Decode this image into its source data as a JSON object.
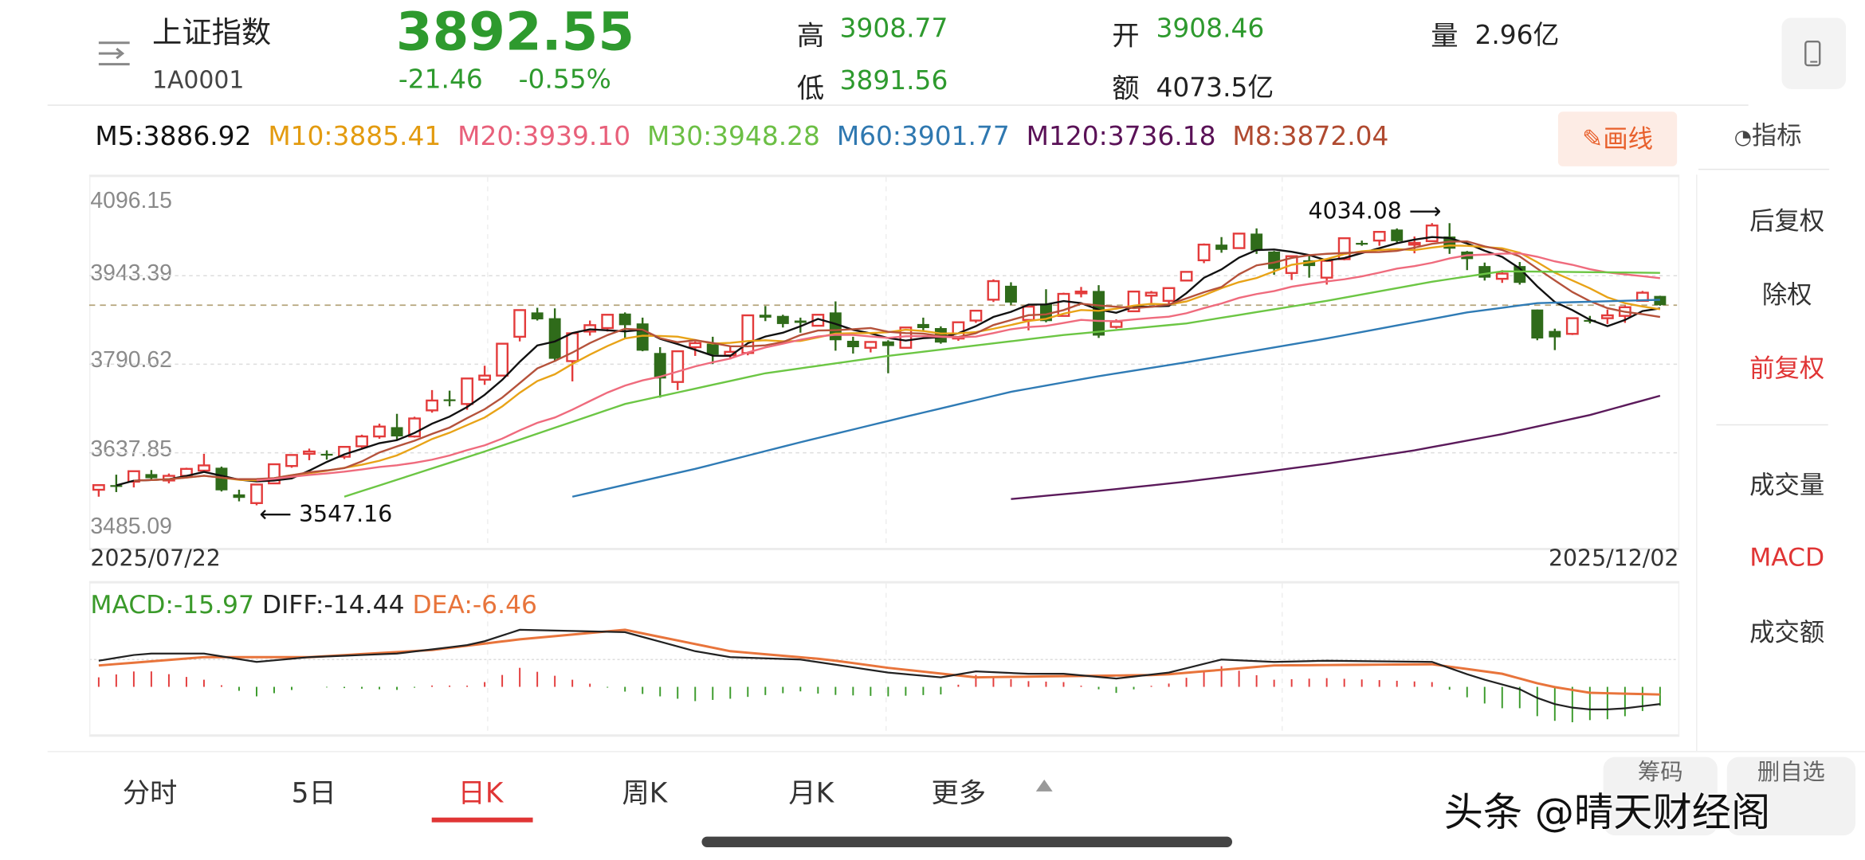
{
  "header": {
    "name": "上证指数",
    "code": "1A0001",
    "price": "3892.55",
    "change": "-21.46",
    "change_pct": "-0.55%",
    "high_label": "高",
    "high": "3908.77",
    "low_label": "低",
    "low": "3891.56",
    "open_label": "开",
    "open": "3908.46",
    "amount_label": "额",
    "amount": "4073.5亿",
    "volume_label": "量",
    "volume": "2.96亿",
    "price_color": "#2e9a2e"
  },
  "ma_legend": [
    {
      "text": "M5:3886.92",
      "color": "#111111"
    },
    {
      "text": "M10:3885.41",
      "color": "#e39b10"
    },
    {
      "text": "M20:3939.10",
      "color": "#e8607a"
    },
    {
      "text": "M30:3948.28",
      "color": "#6cbf45"
    },
    {
      "text": "M60:3901.77",
      "color": "#2f78b0"
    },
    {
      "text": "M120:3736.18",
      "color": "#5a1257"
    },
    {
      "text": "M8:3872.04",
      "color": "#b04a30"
    }
  ],
  "draw_button": "画线",
  "indicator_label": "指标",
  "right_panel": {
    "items": [
      {
        "label": "后复权",
        "active": false
      },
      {
        "label": "除权",
        "active": false
      },
      {
        "label": "前复权",
        "active": true
      },
      {
        "label": "成交量",
        "active": false
      },
      {
        "label": "MACD",
        "active": true
      },
      {
        "label": "成交额",
        "active": false
      }
    ]
  },
  "tabs": [
    {
      "label": "分时",
      "active": false
    },
    {
      "label": "5日",
      "active": false
    },
    {
      "label": "日K",
      "active": true
    },
    {
      "label": "周K",
      "active": false
    },
    {
      "label": "月K",
      "active": false
    },
    {
      "label": "更多",
      "active": false
    }
  ],
  "bottom_buttons": [
    "筹码",
    "删自选"
  ],
  "watermark": "头条 @晴天财经阁",
  "chart_data": {
    "type": "candlestick",
    "y_ticks": [
      "4096.15",
      "3943.39",
      "3790.62",
      "3637.85",
      "3485.09"
    ],
    "ylim": [
      3485.09,
      4096.15
    ],
    "x_start_label": "2025/07/22",
    "x_end_label": "2025/12/02",
    "last_price": 3892.55,
    "up_color": "#e33b3b",
    "down_color": "#2f6b1a",
    "annotations": {
      "low": {
        "label": "3547.16",
        "index": 9,
        "value": 3547.16
      },
      "high": {
        "label": "4034.08",
        "index": 76,
        "value": 4034.08
      }
    },
    "candles_ohlc": [
      [
        3574,
        3583,
        3562,
        3582
      ],
      [
        3582,
        3600,
        3570,
        3581
      ],
      [
        3588,
        3606,
        3578,
        3606
      ],
      [
        3601,
        3608,
        3590,
        3594
      ],
      [
        3590,
        3602,
        3585,
        3598
      ],
      [
        3598,
        3612,
        3594,
        3610
      ],
      [
        3607,
        3636,
        3603,
        3616
      ],
      [
        3612,
        3614,
        3571,
        3573
      ],
      [
        3566,
        3574,
        3554,
        3560
      ],
      [
        3551,
        3584,
        3547.16,
        3583
      ],
      [
        3585,
        3618,
        3584,
        3618
      ],
      [
        3615,
        3634,
        3612,
        3634
      ],
      [
        3636,
        3645,
        3625,
        3640
      ],
      [
        3636,
        3642,
        3626,
        3635
      ],
      [
        3631,
        3649,
        3627,
        3648
      ],
      [
        3649,
        3669,
        3646,
        3666
      ],
      [
        3666,
        3688,
        3662,
        3683
      ],
      [
        3682,
        3705,
        3660,
        3666
      ],
      [
        3666,
        3700,
        3664,
        3697
      ],
      [
        3711,
        3746,
        3707,
        3728
      ],
      [
        3730,
        3745,
        3718,
        3727
      ],
      [
        3722,
        3767,
        3712,
        3766
      ],
      [
        3764,
        3788,
        3755,
        3771
      ],
      [
        3771,
        3826,
        3770,
        3826
      ],
      [
        3838,
        3883,
        3830,
        3884
      ],
      [
        3880,
        3888,
        3866,
        3868
      ],
      [
        3870,
        3887,
        3795,
        3800
      ],
      [
        3796,
        3845,
        3761,
        3844
      ],
      [
        3847,
        3866,
        3840,
        3858
      ],
      [
        3853,
        3876,
        3847,
        3876
      ],
      [
        3878,
        3880,
        3834,
        3858
      ],
      [
        3861,
        3871,
        3813,
        3814
      ],
      [
        3810,
        3820,
        3733,
        3766
      ],
      [
        3760,
        3813,
        3746,
        3813
      ],
      [
        3820,
        3830,
        3805,
        3827
      ],
      [
        3826,
        3838,
        3791,
        3807
      ],
      [
        3806,
        3822,
        3799,
        3812
      ],
      [
        3810,
        3875,
        3806,
        3875
      ],
      [
        3876,
        3891,
        3865,
        3871
      ],
      [
        3874,
        3876,
        3854,
        3860
      ],
      [
        3866,
        3871,
        3845,
        3862
      ],
      [
        3857,
        3877,
        3856,
        3876
      ],
      [
        3880,
        3899,
        3814,
        3832
      ],
      [
        3831,
        3838,
        3809,
        3820
      ],
      [
        3819,
        3829,
        3811,
        3829
      ],
      [
        3830,
        3832,
        3775,
        3822
      ],
      [
        3819,
        3854,
        3818,
        3854
      ],
      [
        3860,
        3871,
        3848,
        3853
      ],
      [
        3853,
        3856,
        3826,
        3828
      ],
      [
        3835,
        3863,
        3831,
        3863
      ],
      [
        3866,
        3883,
        3862,
        3883
      ],
      [
        3902,
        3937,
        3898,
        3934
      ],
      [
        3926,
        3932,
        3893,
        3897
      ],
      [
        3867,
        3890,
        3849,
        3890
      ],
      [
        3895,
        3920,
        3863,
        3865
      ],
      [
        3874,
        3914,
        3874,
        3912
      ],
      [
        3913,
        3924,
        3906,
        3916
      ],
      [
        3917,
        3927,
        3836,
        3840
      ],
      [
        3855,
        3868,
        3852,
        3864
      ],
      [
        3882,
        3917,
        3882,
        3916
      ],
      [
        3909,
        3917,
        3895,
        3914
      ],
      [
        3900,
        3922,
        3890,
        3922
      ],
      [
        3935,
        3951,
        3935,
        3950
      ],
      [
        3970,
        3999,
        3965,
        3997
      ],
      [
        3997,
        4010,
        3983,
        3988
      ],
      [
        3991,
        4016,
        3990,
        4016
      ],
      [
        4016,
        4025,
        3981,
        3987
      ],
      [
        3985,
        3986,
        3945,
        3955
      ],
      [
        3948,
        3977,
        3936,
        3977
      ],
      [
        3970,
        3979,
        3940,
        3960
      ],
      [
        3940,
        3969,
        3928,
        3969
      ],
      [
        3972,
        4008,
        3970,
        4008
      ],
      [
        4000,
        4004,
        3995,
        3998
      ],
      [
        4004,
        4019,
        3995,
        4019
      ],
      [
        4023,
        4025,
        4001,
        4003
      ],
      [
        3998,
        4011,
        3982,
        4000
      ],
      [
        4003,
        4034.08,
        4002,
        4030
      ],
      [
        4011,
        4034,
        3981,
        3990
      ],
      [
        3985,
        3986,
        3953,
        3972
      ],
      [
        3960,
        3966,
        3935,
        3940
      ],
      [
        3938,
        3953,
        3931,
        3947
      ],
      [
        3960,
        3967,
        3928,
        3931
      ],
      [
        3885,
        3885,
        3832,
        3835
      ],
      [
        3848,
        3852,
        3815,
        3837
      ],
      [
        3843,
        3870,
        3841,
        3870
      ],
      [
        3867,
        3874,
        3861,
        3864
      ],
      [
        3870,
        3885,
        3860,
        3875
      ],
      [
        3874,
        3892,
        3862,
        3889
      ],
      [
        3900,
        3917,
        3899,
        3914
      ],
      [
        3908.46,
        3908.77,
        3891.56,
        3892.55
      ]
    ],
    "moving_averages": [
      {
        "name": "M5",
        "period": 5,
        "start": 1,
        "color": "#111111"
      },
      {
        "name": "M10",
        "period": 10,
        "start": 3,
        "color": "#e8a317"
      },
      {
        "name": "M8",
        "period": 8,
        "start": 2,
        "color": "#b5523b"
      },
      {
        "name": "M20",
        "period": 20,
        "start": 9,
        "color": "#ef6b7d"
      },
      {
        "name": "M30",
        "color": "#6cc644",
        "points": [
          [
            14,
            3562
          ],
          [
            22,
            3640
          ],
          [
            30,
            3722
          ],
          [
            38,
            3775
          ],
          [
            45,
            3805
          ],
          [
            55,
            3841
          ],
          [
            62,
            3861
          ],
          [
            70,
            3900
          ],
          [
            76,
            3933
          ],
          [
            80,
            3951
          ],
          [
            89,
            3948.28
          ]
        ]
      },
      {
        "name": "M60",
        "color": "#2f7bb5",
        "points": [
          [
            27,
            3562
          ],
          [
            34,
            3610
          ],
          [
            40,
            3656
          ],
          [
            46,
            3700
          ],
          [
            52,
            3743
          ],
          [
            57,
            3770
          ],
          [
            62,
            3794
          ],
          [
            70,
            3835
          ],
          [
            78,
            3880
          ],
          [
            82,
            3896
          ],
          [
            89,
            3901.77
          ]
        ]
      },
      {
        "name": "M120",
        "color": "#5b1a5b",
        "points": [
          [
            52,
            3558
          ],
          [
            57,
            3572
          ],
          [
            62,
            3588
          ],
          [
            66,
            3603
          ],
          [
            70,
            3619
          ],
          [
            75,
            3642
          ],
          [
            80,
            3670
          ],
          [
            85,
            3703
          ],
          [
            89,
            3736.18
          ]
        ]
      }
    ],
    "macd": {
      "legend_macd": "MACD:-15.97",
      "legend_diff": "DIFF:-14.44",
      "legend_dea": "DEA:-6.46",
      "macd_color": "#3a9a2a",
      "diff_color": "#222222",
      "dea_color": "#e8743b",
      "diff": [
        [
          0,
          22
        ],
        [
          2.5,
          28
        ],
        [
          6,
          28
        ],
        [
          9,
          21
        ],
        [
          12,
          25
        ],
        [
          17,
          28
        ],
        [
          21.5,
          36
        ],
        [
          24,
          48
        ],
        [
          27,
          47
        ],
        [
          30,
          46
        ],
        [
          32,
          38
        ],
        [
          34,
          30
        ],
        [
          36,
          25
        ],
        [
          40,
          23
        ],
        [
          45,
          12
        ],
        [
          48,
          8
        ],
        [
          50,
          13
        ],
        [
          53,
          11
        ],
        [
          55,
          11
        ],
        [
          58,
          7
        ],
        [
          61,
          12
        ],
        [
          64,
          23
        ],
        [
          67,
          21
        ],
        [
          70,
          22
        ],
        [
          76,
          21
        ],
        [
          78.5,
          8
        ],
        [
          81,
          -2
        ],
        [
          82.5,
          -13
        ],
        [
          84.5,
          -19
        ],
        [
          86.5,
          -19
        ],
        [
          89,
          -14.44
        ]
      ],
      "dea": [
        [
          0,
          18
        ],
        [
          6,
          25
        ],
        [
          12,
          25
        ],
        [
          19,
          31
        ],
        [
          24,
          40
        ],
        [
          30,
          48
        ],
        [
          36,
          30
        ],
        [
          41.5,
          23
        ],
        [
          45,
          16
        ],
        [
          50,
          8
        ],
        [
          55,
          9
        ],
        [
          60.5,
          10
        ],
        [
          67,
          18
        ],
        [
          76,
          19
        ],
        [
          80,
          11
        ],
        [
          82.5,
          1
        ],
        [
          85,
          -5
        ],
        [
          89,
          -6.46
        ]
      ]
    }
  }
}
